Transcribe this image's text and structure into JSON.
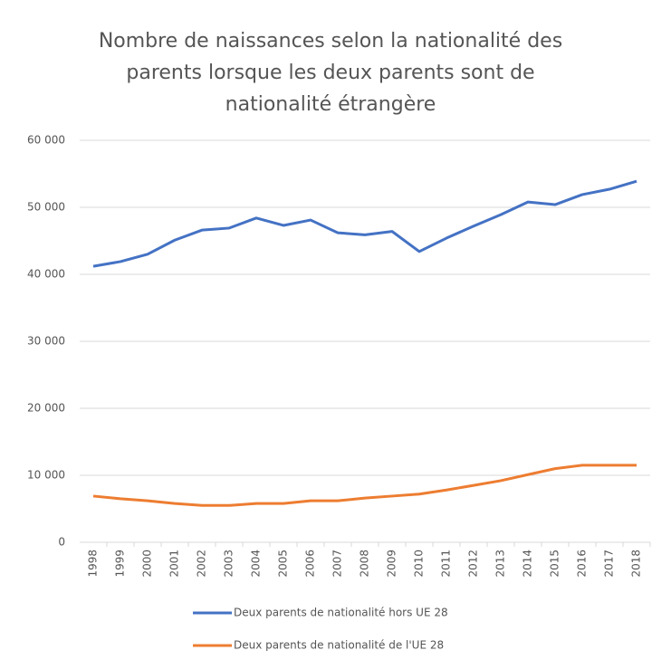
{
  "chart_data": {
    "type": "line",
    "title": "Nombre de naissances selon la nationalité des parents lorsque les deux parents sont de nationalité étrangère",
    "categories": [
      "1998",
      "1999",
      "2000",
      "2001",
      "2002",
      "2003",
      "2004",
      "2005",
      "2006",
      "2007",
      "2008",
      "2009",
      "2010",
      "2011",
      "2012",
      "2013",
      "2014",
      "2015",
      "2016",
      "2017",
      "2018"
    ],
    "series": [
      {
        "name": "Deux parents de nationalité hors UE 28",
        "color": "#4472c4",
        "values": [
          41200,
          41900,
          43000,
          45100,
          46600,
          46900,
          48400,
          47300,
          48100,
          46200,
          45900,
          46400,
          43400,
          45400,
          47200,
          48900,
          50800,
          50400,
          51900,
          52700,
          53900
        ]
      },
      {
        "name": "Deux parents de nationalité de l'UE 28",
        "color": "#ed7d31",
        "values": [
          6900,
          6500,
          6200,
          5800,
          5500,
          5500,
          5800,
          5800,
          6200,
          6200,
          6600,
          6900,
          7200,
          7800,
          8500,
          9200,
          10100,
          11000,
          11500,
          11500,
          11500
        ]
      }
    ],
    "ylim": [
      0,
      60000
    ],
    "yticks": [
      0,
      {
        "value": 10000,
        "label": "10 000"
      },
      {
        "value": 20000,
        "label": "20 000"
      },
      {
        "value": 30000,
        "label": "30 000"
      },
      {
        "value": 40000,
        "label": "40 000"
      },
      {
        "value": 50000,
        "label": "50 000"
      },
      {
        "value": 60000,
        "label": "60 000"
      }
    ],
    "grid": true,
    "legend": "bottom"
  }
}
